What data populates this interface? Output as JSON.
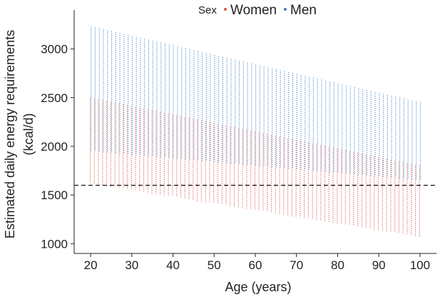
{
  "chart_data": {
    "type": "scatter",
    "title": "",
    "xlabel": "Age (years)",
    "ylabel_lines": [
      "Estimated daily energy requirements",
      "(kcal/d)"
    ],
    "xlim": [
      16,
      104
    ],
    "ylim": [
      900,
      3400
    ],
    "xticks": [
      20,
      30,
      40,
      50,
      60,
      70,
      80,
      90,
      100
    ],
    "yticks": [
      1000,
      1500,
      2000,
      2500,
      3000
    ],
    "x_step": 1,
    "grid": false,
    "reference_line": {
      "y": 1600,
      "style": "dashed",
      "color": "#222222"
    },
    "legend": {
      "title": "Sex",
      "placement": "top-center"
    },
    "series": [
      {
        "name": "Women",
        "color": "#d9534a",
        "x_range": [
          20,
          100
        ],
        "y_min_at_x_start": 1620,
        "y_min_at_x_end": 1070,
        "y_max_at_x_start": 2500,
        "y_max_at_x_end": 1800
      },
      {
        "name": "Men",
        "color": "#3f7fc0",
        "x_range": [
          20,
          100
        ],
        "y_min_at_x_start": 1950,
        "y_min_at_x_end": 1650,
        "y_max_at_x_start": 3230,
        "y_max_at_x_end": 2450
      }
    ]
  }
}
